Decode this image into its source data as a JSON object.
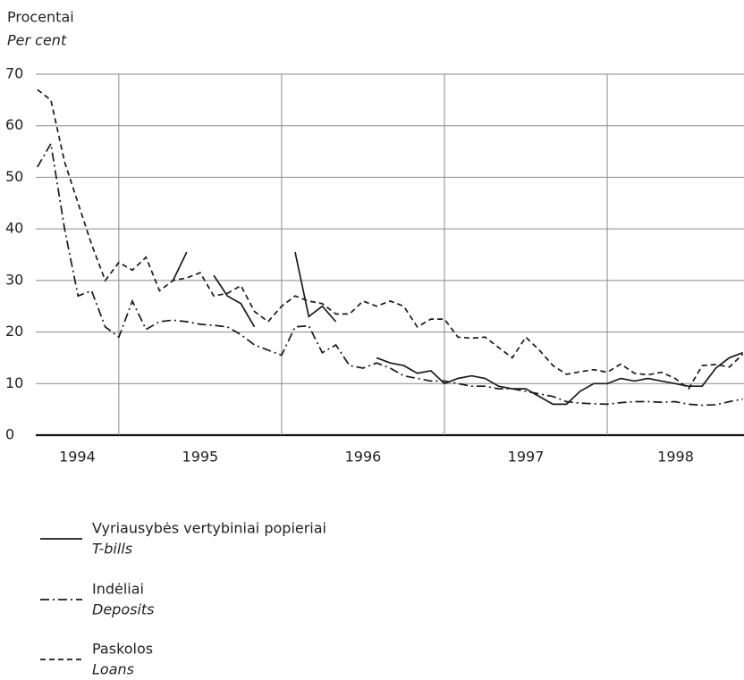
{
  "chart_data": {
    "type": "line",
    "y_label": "Procentai",
    "y_label_en": "Per cent",
    "year_labels": [
      "1994",
      "1995",
      "1996",
      "1997",
      "1998"
    ],
    "year_starts": [
      1994,
      1995,
      1996,
      1997,
      1998
    ],
    "xlim": [
      1994.49,
      1998.84
    ],
    "xgrid": [
      1995,
      1996,
      1997,
      1998
    ],
    "ylim": [
      0,
      70
    ],
    "yticks": [
      0,
      10,
      20,
      30,
      40,
      50,
      60,
      70
    ],
    "grid": true,
    "x": [
      1994.5,
      1994.583,
      1994.667,
      1994.75,
      1994.833,
      1994.917,
      1995,
      1995.083,
      1995.167,
      1995.25,
      1995.333,
      1995.417,
      1995.5,
      1995.583,
      1995.667,
      1995.75,
      1995.833,
      1995.917,
      1996,
      1996.083,
      1996.167,
      1996.25,
      1996.333,
      1996.417,
      1996.5,
      1996.583,
      1996.667,
      1996.75,
      1996.833,
      1996.917,
      1997,
      1997.083,
      1997.167,
      1997.25,
      1997.333,
      1997.417,
      1997.5,
      1997.583,
      1997.667,
      1997.75,
      1997.833,
      1997.917,
      1998,
      1998.083,
      1998.167,
      1998.25,
      1998.333,
      1998.417,
      1998.5,
      1998.583,
      1998.667,
      1998.75,
      1998.833
    ],
    "series": [
      {
        "name": "Vyriausybės vertybiniai popieriai",
        "name_en": "T-bills",
        "color": "#1a1a1a",
        "dash": "none",
        "values": [
          null,
          null,
          null,
          null,
          null,
          null,
          null,
          null,
          null,
          null,
          30,
          35.5,
          null,
          31,
          27,
          25.5,
          21,
          null,
          null,
          35.5,
          23,
          25,
          22,
          null,
          null,
          15,
          14,
          13.5,
          12,
          12.5,
          10,
          11,
          11.5,
          11,
          9.5,
          9,
          9,
          7.5,
          6,
          6,
          8.5,
          10,
          10,
          11,
          10.5,
          11,
          10.5,
          10,
          9.5,
          9.5,
          13,
          15,
          16
        ]
      },
      {
        "name": "Indėliai",
        "name_en": "Deposits",
        "color": "#1a1a1a",
        "dash": "10,4,2,4",
        "values": [
          52,
          56.5,
          40,
          27,
          28,
          21,
          19,
          26,
          20.5,
          22,
          22.3,
          22,
          21.5,
          21.3,
          21,
          19.5,
          17.5,
          16.5,
          15.5,
          21,
          21.2,
          16,
          17.5,
          13.5,
          13,
          14,
          13,
          11.5,
          11,
          10.5,
          10.5,
          10,
          9.5,
          9.5,
          9,
          9,
          8.5,
          8,
          7.5,
          6.5,
          6.2,
          6.1,
          6,
          6.3,
          6.5,
          6.5,
          6.4,
          6.5,
          6,
          5.8,
          5.9,
          6.5,
          7
        ]
      },
      {
        "name": "Paskolos",
        "name_en": "Loans",
        "color": "#1a1a1a",
        "dash": "6,4",
        "values": [
          67,
          65,
          53,
          45,
          37,
          30,
          33.5,
          32,
          34.5,
          28,
          30,
          30.5,
          31.5,
          27,
          27.5,
          29,
          24,
          22,
          25,
          27,
          26,
          25.5,
          23.5,
          23.5,
          26,
          25,
          26,
          25,
          21,
          22.5,
          22.5,
          19,
          18.8,
          19,
          17,
          15,
          19,
          16.5,
          13.5,
          11.8,
          12.3,
          12.7,
          12.2,
          13.8,
          12,
          11.7,
          12.2,
          11,
          9,
          13.5,
          13.7,
          13.2,
          15.7
        ]
      }
    ]
  }
}
